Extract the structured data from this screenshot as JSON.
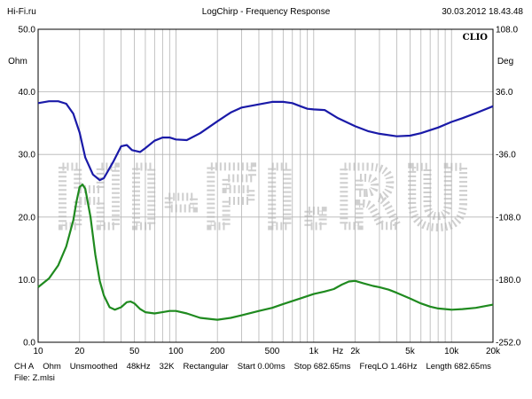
{
  "header": {
    "left": "Hi-Fi.ru",
    "center": "LogChirp - Frequency Response",
    "right": "30.03.2012 18.43.48"
  },
  "brand": "CLIO",
  "watermark": "HI-FI.RU",
  "footer": {
    "items": [
      "CH A",
      "Ohm",
      "Unsmoothed",
      "48kHz",
      "32K",
      "Rectangular",
      "Start 0.00ms",
      "Stop 682.65ms",
      "FreqLO 1.46Hz",
      "Length 682.65ms"
    ],
    "file": "File: Z.mlsi"
  },
  "colors": {
    "magnitude": "#1a1aa8",
    "phase": "#1f8a1f",
    "grid": "#b4b4b4"
  },
  "chart_data": {
    "type": "line",
    "title": "LogChirp - Frequency Response",
    "x_scale": "log",
    "xlim": [
      10,
      20000
    ],
    "x_ticks": [
      {
        "v": 10,
        "label": "10"
      },
      {
        "v": 20,
        "label": "20"
      },
      {
        "v": 50,
        "label": "50"
      },
      {
        "v": 100,
        "label": "100"
      },
      {
        "v": 200,
        "label": "200"
      },
      {
        "v": 500,
        "label": "500"
      },
      {
        "v": 1000,
        "label": "1k"
      },
      {
        "v": 1500,
        "label": "Hz"
      },
      {
        "v": 2000,
        "label": "2k"
      },
      {
        "v": 5000,
        "label": "5k"
      },
      {
        "v": 10000,
        "label": "10k"
      },
      {
        "v": 20000,
        "label": "20k"
      }
    ],
    "y_left": {
      "unit": "Ohm",
      "lim": [
        0,
        50
      ],
      "ticks": [
        "0.0",
        "10.0",
        "20.0",
        "30.0",
        "40.0",
        "50.0"
      ]
    },
    "y_right": {
      "unit": "Deg",
      "lim": [
        -252,
        108
      ],
      "ticks": [
        "-252.0",
        "-180.0",
        "-108.0",
        "-36.0",
        "36.0",
        "108.0"
      ]
    },
    "grid": true,
    "series": [
      {
        "axis": "left",
        "color": "#1a1aa8",
        "points": [
          [
            10,
            38.2
          ],
          [
            12,
            38.5
          ],
          [
            14,
            38.5
          ],
          [
            16,
            38.1
          ],
          [
            18,
            36.5
          ],
          [
            20,
            33.5
          ],
          [
            22,
            29.5
          ],
          [
            25,
            26.8
          ],
          [
            28,
            25.9
          ],
          [
            30,
            26.2
          ],
          [
            35,
            28.8
          ],
          [
            40,
            31.3
          ],
          [
            44,
            31.5
          ],
          [
            48,
            30.7
          ],
          [
            55,
            30.4
          ],
          [
            60,
            31.0
          ],
          [
            70,
            32.2
          ],
          [
            80,
            32.7
          ],
          [
            90,
            32.7
          ],
          [
            100,
            32.4
          ],
          [
            120,
            32.3
          ],
          [
            150,
            33.4
          ],
          [
            200,
            35.3
          ],
          [
            250,
            36.7
          ],
          [
            300,
            37.5
          ],
          [
            400,
            38.0
          ],
          [
            500,
            38.4
          ],
          [
            600,
            38.4
          ],
          [
            700,
            38.2
          ],
          [
            800,
            37.7
          ],
          [
            900,
            37.3
          ],
          [
            1000,
            37.2
          ],
          [
            1200,
            37.1
          ],
          [
            1500,
            35.8
          ],
          [
            2000,
            34.5
          ],
          [
            2500,
            33.7
          ],
          [
            3000,
            33.3
          ],
          [
            4000,
            32.9
          ],
          [
            5000,
            33.0
          ],
          [
            6000,
            33.4
          ],
          [
            8000,
            34.3
          ],
          [
            10000,
            35.2
          ],
          [
            12000,
            35.8
          ],
          [
            15000,
            36.6
          ],
          [
            20000,
            37.7
          ]
        ]
      },
      {
        "axis": "left",
        "color": "#1f8a1f",
        "points": [
          [
            10,
            8.8
          ],
          [
            12,
            10.2
          ],
          [
            14,
            12.3
          ],
          [
            16,
            15.3
          ],
          [
            18,
            19.5
          ],
          [
            19,
            22.5
          ],
          [
            20,
            24.8
          ],
          [
            21,
            25.2
          ],
          [
            22,
            24.5
          ],
          [
            24,
            20.0
          ],
          [
            26,
            14.0
          ],
          [
            28,
            9.8
          ],
          [
            30,
            7.5
          ],
          [
            33,
            5.6
          ],
          [
            36,
            5.2
          ],
          [
            40,
            5.6
          ],
          [
            44,
            6.4
          ],
          [
            47,
            6.5
          ],
          [
            50,
            6.2
          ],
          [
            55,
            5.3
          ],
          [
            60,
            4.8
          ],
          [
            70,
            4.6
          ],
          [
            80,
            4.8
          ],
          [
            90,
            5.0
          ],
          [
            100,
            5.0
          ],
          [
            120,
            4.6
          ],
          [
            150,
            3.9
          ],
          [
            180,
            3.7
          ],
          [
            200,
            3.6
          ],
          [
            250,
            3.9
          ],
          [
            300,
            4.3
          ],
          [
            400,
            5.0
          ],
          [
            500,
            5.5
          ],
          [
            600,
            6.1
          ],
          [
            800,
            7.0
          ],
          [
            1000,
            7.7
          ],
          [
            1200,
            8.1
          ],
          [
            1400,
            8.5
          ],
          [
            1600,
            9.2
          ],
          [
            1800,
            9.7
          ],
          [
            2000,
            9.8
          ],
          [
            2300,
            9.4
          ],
          [
            2700,
            9.0
          ],
          [
            3000,
            8.8
          ],
          [
            3500,
            8.4
          ],
          [
            4000,
            7.9
          ],
          [
            5000,
            7.0
          ],
          [
            6000,
            6.2
          ],
          [
            7000,
            5.7
          ],
          [
            8000,
            5.4
          ],
          [
            10000,
            5.2
          ],
          [
            12000,
            5.3
          ],
          [
            15000,
            5.5
          ],
          [
            20000,
            6.0
          ]
        ]
      }
    ]
  }
}
